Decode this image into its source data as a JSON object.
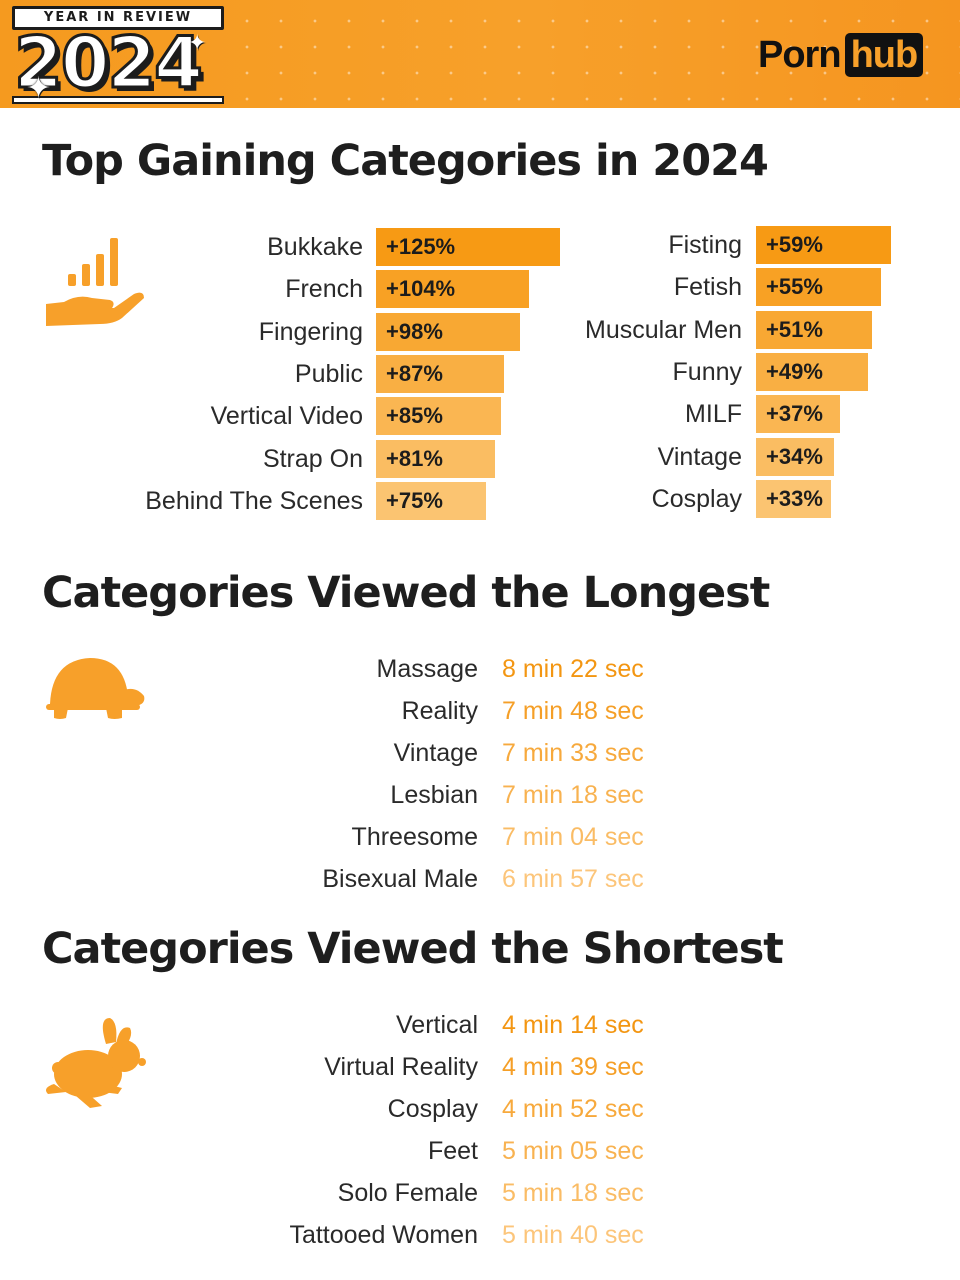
{
  "header": {
    "badge_top": "YEAR IN REVIEW",
    "badge_year": "2024",
    "logo_left": "Porn",
    "logo_right": "hub"
  },
  "colors": {
    "orange": "#f7a02a",
    "bar_strong": "#f79a14",
    "bar_light": "#fbc471",
    "text_dark": "#1e1e1e"
  },
  "gaining": {
    "title": "Top Gaining Categories in 2024",
    "icon": "growth-hand-icon"
  },
  "longest": {
    "title": "Categories Viewed the Longest",
    "icon": "turtle-icon",
    "items": [
      {
        "label": "Massage",
        "value": "8 min 22 sec"
      },
      {
        "label": "Reality",
        "value": "7 min 48 sec"
      },
      {
        "label": "Vintage",
        "value": "7 min 33 sec"
      },
      {
        "label": "Lesbian",
        "value": "7 min 18 sec"
      },
      {
        "label": "Threesome",
        "value": "7 min 04 sec"
      },
      {
        "label": "Bisexual Male",
        "value": "6 min 57 sec"
      }
    ]
  },
  "shortest": {
    "title": "Categories Viewed the Shortest",
    "icon": "rabbit-icon",
    "items": [
      {
        "label": "Vertical",
        "value": "4 min 14 sec"
      },
      {
        "label": "Virtual Reality",
        "value": "4 min 39 sec"
      },
      {
        "label": "Cosplay",
        "value": "4 min 52 sec"
      },
      {
        "label": "Feet",
        "value": "5 min 05 sec"
      },
      {
        "label": "Solo Female",
        "value": "5 min 18 sec"
      },
      {
        "label": "Tattooed Women",
        "value": "5 min 40 sec"
      }
    ]
  },
  "chart_data": [
    {
      "type": "bar",
      "title": "Top Gaining Categories in 2024",
      "unit": "%",
      "categories": [
        "Bukkake",
        "French",
        "Fingering",
        "Public",
        "Vertical Video",
        "Strap On",
        "Behind The Scenes"
      ],
      "values": [
        125,
        104,
        98,
        87,
        85,
        81,
        75
      ],
      "labels": [
        "+125%",
        "+104%",
        "+98%",
        "+87%",
        "+85%",
        "+81%",
        "+75%"
      ]
    },
    {
      "type": "bar",
      "title": "Top Gaining Categories in 2024",
      "unit": "%",
      "categories": [
        "Fisting",
        "Fetish",
        "Muscular Men",
        "Funny",
        "MILF",
        "Vintage",
        "Cosplay"
      ],
      "values": [
        59,
        55,
        51,
        49,
        37,
        34,
        33
      ],
      "labels": [
        "+59%",
        "+55%",
        "+51%",
        "+49%",
        "+37%",
        "+34%",
        "+33%"
      ]
    }
  ]
}
